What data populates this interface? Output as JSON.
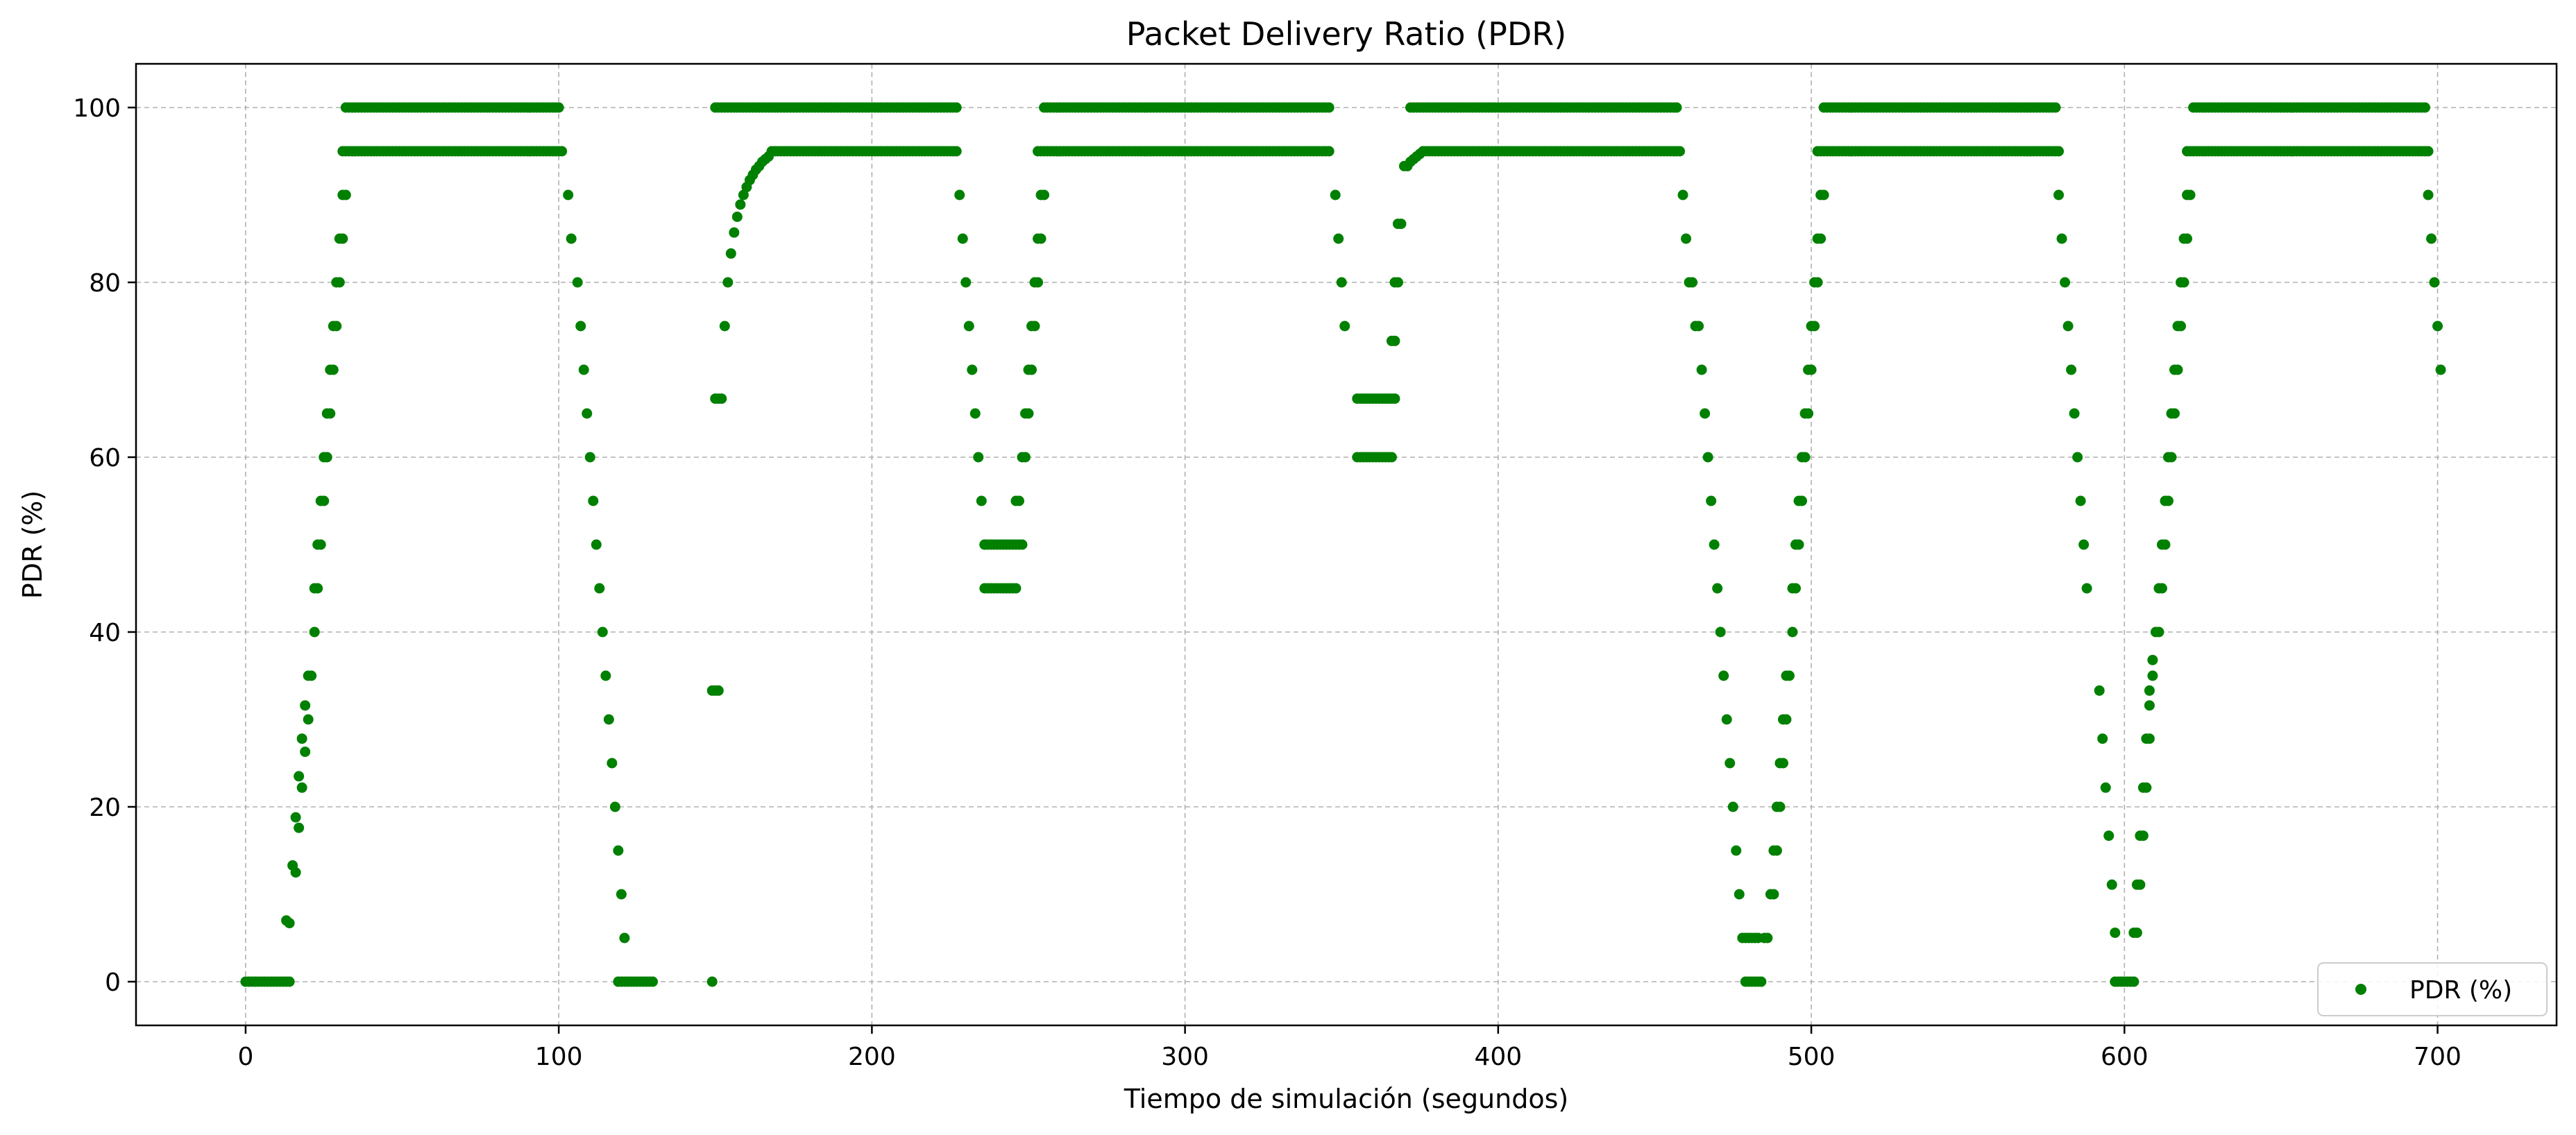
{
  "chart_data": {
    "type": "scatter",
    "title": "Packet Delivery Ratio (PDR)",
    "xlabel": "Tiempo de simulación (segundos)",
    "ylabel": "PDR (%)",
    "xlim": [
      -35,
      738
    ],
    "ylim": [
      -5,
      105
    ],
    "xticks": [
      0,
      100,
      200,
      300,
      400,
      500,
      600,
      700
    ],
    "yticks": [
      0,
      20,
      40,
      60,
      80,
      100
    ],
    "grid": true,
    "legend_position": "lower-right",
    "marker_color": "#008000",
    "series": [
      {
        "name": "PDR (%)",
        "segments": [
          {
            "x_from": 0,
            "x_to": 14,
            "step": 1,
            "y": 0
          },
          {
            "x_from": 32,
            "x_to": 100,
            "step": 1,
            "y": 100
          },
          {
            "x_from": 31,
            "x_to": 101,
            "step": 1,
            "y": 95
          },
          {
            "x_from": 119,
            "x_to": 130,
            "step": 1,
            "y": 0
          },
          {
            "x_from": 150,
            "x_to": 227,
            "step": 1,
            "y": 100
          },
          {
            "x_from": 168,
            "x_to": 227,
            "step": 1,
            "y": 95
          },
          {
            "x_from": 236,
            "x_to": 248,
            "step": 1,
            "y": 50
          },
          {
            "x_from": 236,
            "x_to": 246,
            "step": 1,
            "y": 45
          },
          {
            "x_from": 255,
            "x_to": 346,
            "step": 1,
            "y": 100
          },
          {
            "x_from": 253,
            "x_to": 346,
            "step": 1,
            "y": 95
          },
          {
            "x_from": 355,
            "x_to": 367,
            "step": 1,
            "y": 66.7
          },
          {
            "x_from": 355,
            "x_to": 366,
            "step": 1,
            "y": 60
          },
          {
            "x_from": 372,
            "x_to": 457,
            "step": 1,
            "y": 100
          },
          {
            "x_from": 376,
            "x_to": 458,
            "step": 1,
            "y": 95
          },
          {
            "x_from": 479,
            "x_to": 484,
            "step": 1,
            "y": 0
          },
          {
            "x_from": 504,
            "x_to": 578,
            "step": 1,
            "y": 100
          },
          {
            "x_from": 502,
            "x_to": 579,
            "step": 1,
            "y": 95
          },
          {
            "x_from": 597,
            "x_to": 603,
            "step": 1,
            "y": 0
          },
          {
            "x_from": 622,
            "x_to": 696,
            "step": 1,
            "y": 100
          },
          {
            "x_from": 620,
            "x_to": 697,
            "step": 1,
            "y": 95
          }
        ],
        "points": [
          [
            13,
            7
          ],
          [
            14,
            6.7
          ],
          [
            15,
            13.3
          ],
          [
            16,
            12.5
          ],
          [
            16,
            18.8
          ],
          [
            17,
            17.6
          ],
          [
            17,
            23.5
          ],
          [
            18,
            22.2
          ],
          [
            18,
            27.8
          ],
          [
            19,
            26.3
          ],
          [
            19,
            31.6
          ],
          [
            20,
            30
          ],
          [
            20,
            35
          ],
          [
            21,
            35
          ],
          [
            22,
            40
          ],
          [
            22,
            45
          ],
          [
            23,
            45
          ],
          [
            23,
            50
          ],
          [
            24,
            50
          ],
          [
            24,
            55
          ],
          [
            25,
            55
          ],
          [
            25,
            60
          ],
          [
            26,
            60
          ],
          [
            26,
            65
          ],
          [
            27,
            65
          ],
          [
            27,
            70
          ],
          [
            28,
            70
          ],
          [
            28,
            75
          ],
          [
            29,
            75
          ],
          [
            29,
            80
          ],
          [
            30,
            80
          ],
          [
            30,
            85
          ],
          [
            31,
            85
          ],
          [
            31,
            90
          ],
          [
            32,
            90
          ],
          [
            103,
            90
          ],
          [
            104,
            85
          ],
          [
            106,
            80
          ],
          [
            107,
            75
          ],
          [
            108,
            70
          ],
          [
            109,
            65
          ],
          [
            110,
            60
          ],
          [
            111,
            55
          ],
          [
            112,
            50
          ],
          [
            113,
            45
          ],
          [
            114,
            40
          ],
          [
            115,
            35
          ],
          [
            116,
            30
          ],
          [
            117,
            25
          ],
          [
            118,
            20
          ],
          [
            119,
            15
          ],
          [
            120,
            10
          ],
          [
            121,
            5
          ],
          [
            149,
            0
          ],
          [
            149,
            33.3
          ],
          [
            150,
            33.3
          ],
          [
            151,
            33.3
          ],
          [
            150,
            66.7
          ],
          [
            151,
            66.7
          ],
          [
            152,
            66.7
          ],
          [
            153,
            75
          ],
          [
            154,
            80
          ],
          [
            155,
            83.3
          ],
          [
            156,
            85.7
          ],
          [
            157,
            87.5
          ],
          [
            158,
            88.9
          ],
          [
            159,
            90
          ],
          [
            160,
            90.9
          ],
          [
            161,
            91.7
          ],
          [
            162,
            92.3
          ],
          [
            163,
            92.9
          ],
          [
            164,
            93.3
          ],
          [
            165,
            93.8
          ],
          [
            166,
            94.1
          ],
          [
            167,
            94.4
          ],
          [
            228,
            90
          ],
          [
            229,
            85
          ],
          [
            230,
            80
          ],
          [
            231,
            75
          ],
          [
            232,
            70
          ],
          [
            233,
            65
          ],
          [
            234,
            60
          ],
          [
            235,
            55
          ],
          [
            236,
            50
          ],
          [
            246,
            55
          ],
          [
            247,
            55
          ],
          [
            248,
            60
          ],
          [
            249,
            60
          ],
          [
            249,
            65
          ],
          [
            250,
            65
          ],
          [
            250,
            70
          ],
          [
            251,
            70
          ],
          [
            251,
            75
          ],
          [
            252,
            75
          ],
          [
            252,
            80
          ],
          [
            253,
            80
          ],
          [
            253,
            85
          ],
          [
            254,
            85
          ],
          [
            254,
            90
          ],
          [
            255,
            90
          ],
          [
            348,
            90
          ],
          [
            349,
            85
          ],
          [
            350,
            80
          ],
          [
            351,
            75
          ],
          [
            366,
            73.3
          ],
          [
            367,
            73.3
          ],
          [
            367,
            80
          ],
          [
            368,
            80
          ],
          [
            368,
            86.7
          ],
          [
            369,
            86.7
          ],
          [
            370,
            93.3
          ],
          [
            371,
            93.3
          ],
          [
            372,
            93.8
          ],
          [
            373,
            94.1
          ],
          [
            374,
            94.4
          ],
          [
            375,
            94.7
          ],
          [
            459,
            90
          ],
          [
            460,
            85
          ],
          [
            461,
            80
          ],
          [
            462,
            80
          ],
          [
            463,
            75
          ],
          [
            464,
            75
          ],
          [
            465,
            70
          ],
          [
            466,
            65
          ],
          [
            467,
            60
          ],
          [
            468,
            55
          ],
          [
            469,
            50
          ],
          [
            470,
            45
          ],
          [
            471,
            40
          ],
          [
            472,
            35
          ],
          [
            473,
            30
          ],
          [
            474,
            25
          ],
          [
            475,
            20
          ],
          [
            476,
            15
          ],
          [
            477,
            10
          ],
          [
            478,
            5
          ],
          [
            479,
            5
          ],
          [
            480,
            5
          ],
          [
            481,
            5
          ],
          [
            482,
            5
          ],
          [
            483,
            5
          ],
          [
            485,
            5
          ],
          [
            486,
            5
          ],
          [
            487,
            10
          ],
          [
            488,
            10
          ],
          [
            488,
            15
          ],
          [
            489,
            15
          ],
          [
            489,
            20
          ],
          [
            490,
            20
          ],
          [
            490,
            25
          ],
          [
            491,
            25
          ],
          [
            491,
            30
          ],
          [
            492,
            30
          ],
          [
            492,
            35
          ],
          [
            493,
            35
          ],
          [
            494,
            40
          ],
          [
            494,
            45
          ],
          [
            495,
            45
          ],
          [
            495,
            50
          ],
          [
            496,
            50
          ],
          [
            496,
            55
          ],
          [
            497,
            55
          ],
          [
            497,
            60
          ],
          [
            498,
            60
          ],
          [
            498,
            65
          ],
          [
            499,
            65
          ],
          [
            499,
            70
          ],
          [
            500,
            70
          ],
          [
            500,
            75
          ],
          [
            501,
            75
          ],
          [
            501,
            80
          ],
          [
            502,
            80
          ],
          [
            502,
            85
          ],
          [
            503,
            85
          ],
          [
            503,
            90
          ],
          [
            504,
            90
          ],
          [
            579,
            90
          ],
          [
            580,
            85
          ],
          [
            581,
            80
          ],
          [
            582,
            75
          ],
          [
            583,
            70
          ],
          [
            584,
            65
          ],
          [
            585,
            60
          ],
          [
            586,
            55
          ],
          [
            587,
            50
          ],
          [
            588,
            45
          ],
          [
            592,
            33.3
          ],
          [
            593,
            27.8
          ],
          [
            594,
            22.2
          ],
          [
            595,
            16.7
          ],
          [
            596,
            11.1
          ],
          [
            597,
            5.6
          ],
          [
            603,
            5.6
          ],
          [
            604,
            5.6
          ],
          [
            604,
            11.1
          ],
          [
            605,
            11.1
          ],
          [
            605,
            16.7
          ],
          [
            606,
            16.7
          ],
          [
            606,
            22.2
          ],
          [
            607,
            22.2
          ],
          [
            607,
            27.8
          ],
          [
            608,
            27.8
          ],
          [
            608,
            31.6
          ],
          [
            608,
            33.3
          ],
          [
            609,
            35
          ],
          [
            609,
            36.8
          ],
          [
            610,
            40
          ],
          [
            611,
            40
          ],
          [
            611,
            45
          ],
          [
            612,
            45
          ],
          [
            612,
            50
          ],
          [
            613,
            50
          ],
          [
            613,
            55
          ],
          [
            614,
            55
          ],
          [
            614,
            60
          ],
          [
            615,
            60
          ],
          [
            615,
            65
          ],
          [
            616,
            65
          ],
          [
            616,
            70
          ],
          [
            617,
            70
          ],
          [
            617,
            75
          ],
          [
            618,
            75
          ],
          [
            618,
            80
          ],
          [
            619,
            80
          ],
          [
            619,
            85
          ],
          [
            620,
            85
          ],
          [
            620,
            90
          ],
          [
            621,
            90
          ],
          [
            697,
            90
          ],
          [
            698,
            85
          ],
          [
            699,
            80
          ],
          [
            700,
            75
          ],
          [
            701,
            70
          ]
        ]
      }
    ]
  }
}
